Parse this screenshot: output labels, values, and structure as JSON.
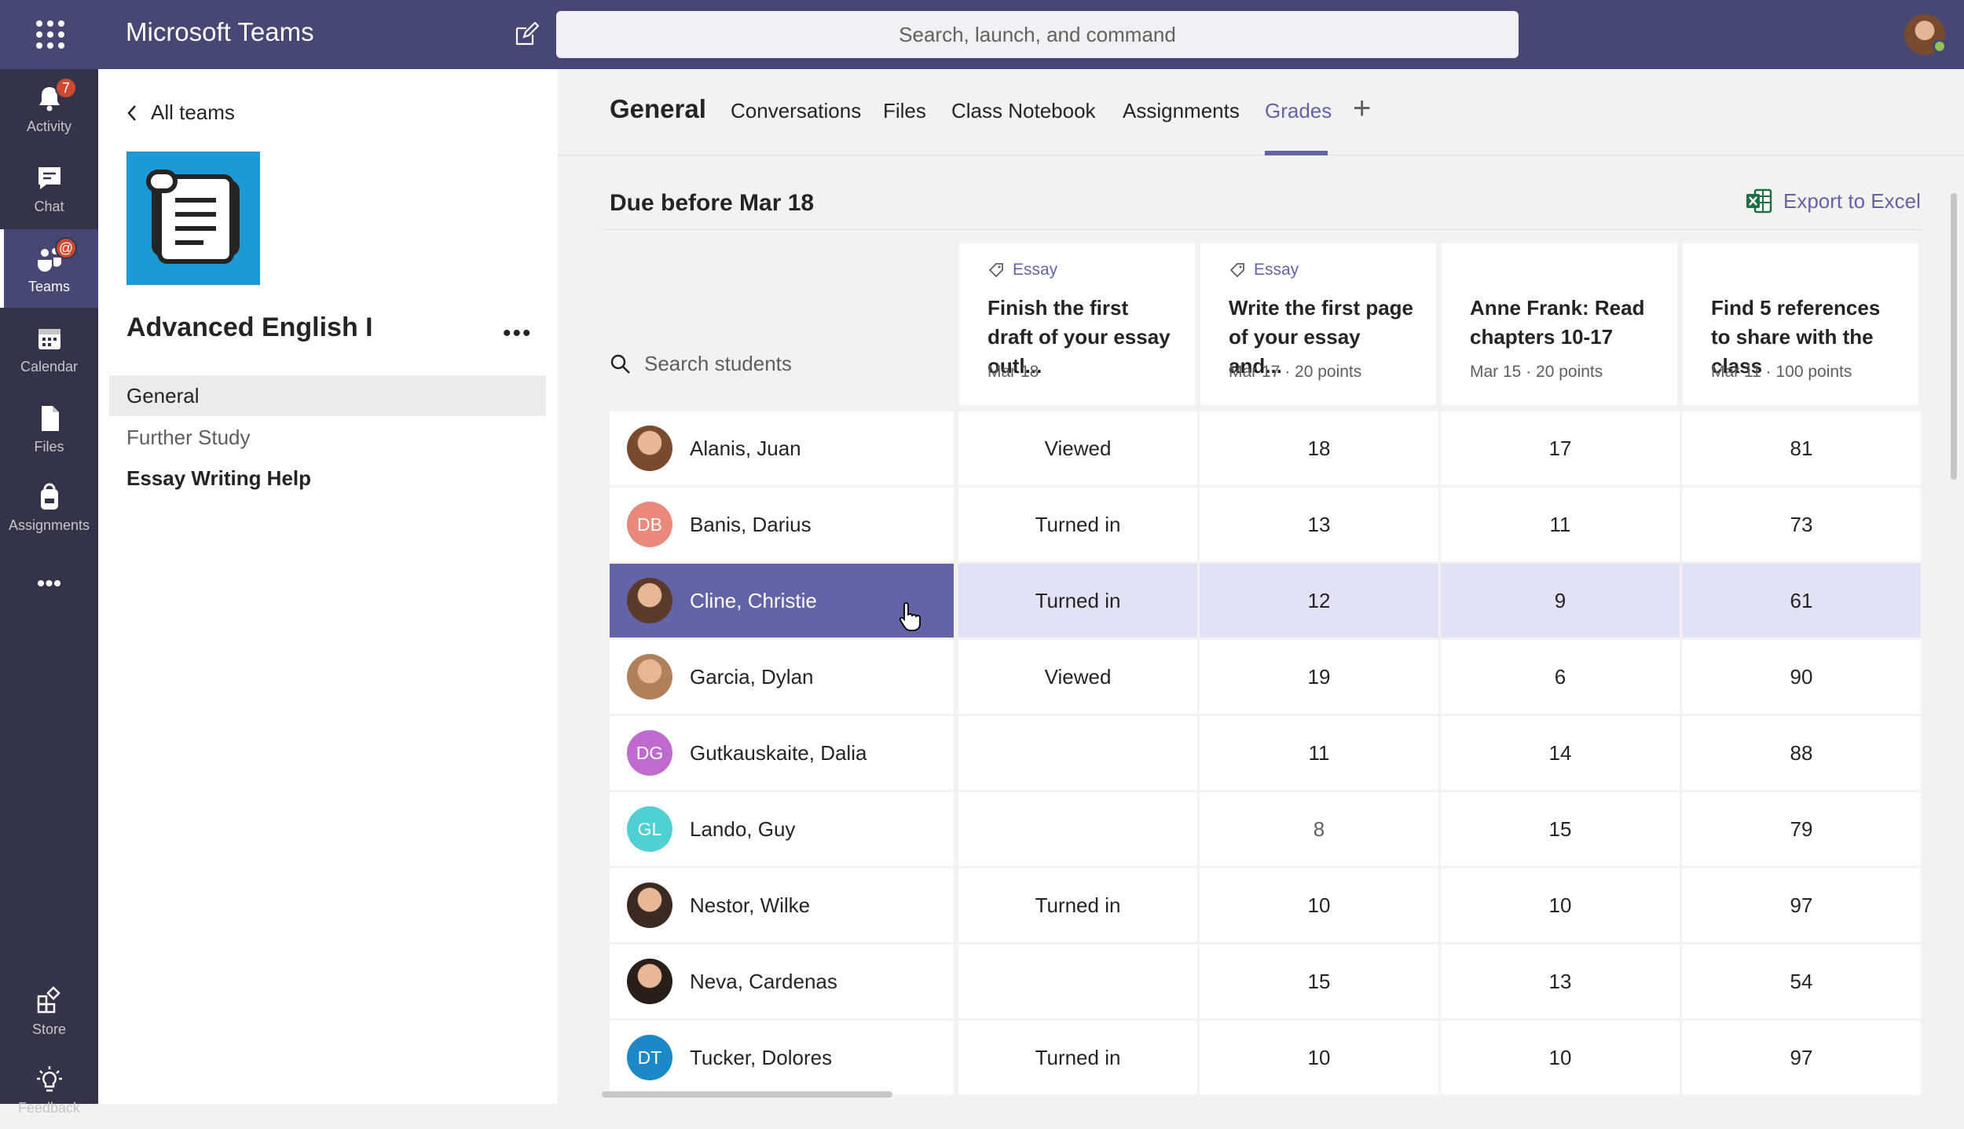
{
  "app": {
    "title": "Microsoft Teams",
    "search_placeholder": "Search, launch, and command"
  },
  "rail": {
    "items": [
      {
        "label": "Activity",
        "badge": "7"
      },
      {
        "label": "Chat"
      },
      {
        "label": "Teams",
        "badge": "@"
      },
      {
        "label": "Calendar"
      },
      {
        "label": "Files"
      },
      {
        "label": "Assignments"
      },
      {
        "label": "•••"
      },
      {
        "label": "Store"
      },
      {
        "label": "Feedback"
      }
    ]
  },
  "team": {
    "back_label": "All teams",
    "name": "Advanced English I",
    "more": "•••",
    "channels": [
      "General",
      "Further Study",
      "Essay Writing Help"
    ]
  },
  "tabs": {
    "channel": "General",
    "items": [
      "Conversations",
      "Files",
      "Class Notebook",
      "Assignments",
      "Grades"
    ],
    "active": "Grades",
    "add": "+"
  },
  "grades": {
    "section_title": "Due before Mar 18",
    "export_label": "Export to Excel",
    "search_placeholder": "Search students",
    "assignments": [
      {
        "tag": "Essay",
        "title": "Finish the first draft of your essay outl...",
        "meta": "Mar 18"
      },
      {
        "tag": "Essay",
        "title": "Write the first page of your essay and...",
        "meta": "Mar 17  ·  20 points"
      },
      {
        "tag": "",
        "title": "Anne Frank: Read chapters 10-17",
        "meta": "Mar 15  ·  20 points"
      },
      {
        "tag": "",
        "title": "Find 5 references to share with the class",
        "meta": "Mar 11  ·  100 points"
      }
    ],
    "students": [
      {
        "name": "Alanis, Juan",
        "initials": "",
        "color": "#7a4a2f",
        "values": [
          "Viewed",
          "18",
          "17",
          "81"
        ]
      },
      {
        "name": "Banis, Darius",
        "initials": "DB",
        "color": "#e8897a",
        "values": [
          "Turned in",
          "13",
          "11",
          "73"
        ]
      },
      {
        "name": "Cline, Christie",
        "initials": "",
        "color": "#5a3a2a",
        "values": [
          "Turned in",
          "12",
          "9",
          "61"
        ]
      },
      {
        "name": "Garcia, Dylan",
        "initials": "",
        "color": "#b0805a",
        "values": [
          "Viewed",
          "19",
          "6",
          "90"
        ]
      },
      {
        "name": "Gutkauskaite, Dalia",
        "initials": "DG",
        "color": "#c06ad0",
        "values": [
          "",
          "11",
          "14",
          "88"
        ]
      },
      {
        "name": "Lando, Guy",
        "initials": "GL",
        "color": "#4fd0d4",
        "values": [
          "",
          "8",
          "15",
          "79"
        ]
      },
      {
        "name": "Nestor, Wilke",
        "initials": "",
        "color": "#3a2a22",
        "values": [
          "Turned in",
          "10",
          "10",
          "97"
        ]
      },
      {
        "name": "Neva, Cardenas",
        "initials": "",
        "color": "#2a1e18",
        "values": [
          "",
          "15",
          "13",
          "54"
        ]
      },
      {
        "name": "Tucker, Dolores",
        "initials": "DT",
        "color": "#1b89c8",
        "values": [
          "Turned in",
          "10",
          "10",
          "97"
        ]
      }
    ]
  }
}
